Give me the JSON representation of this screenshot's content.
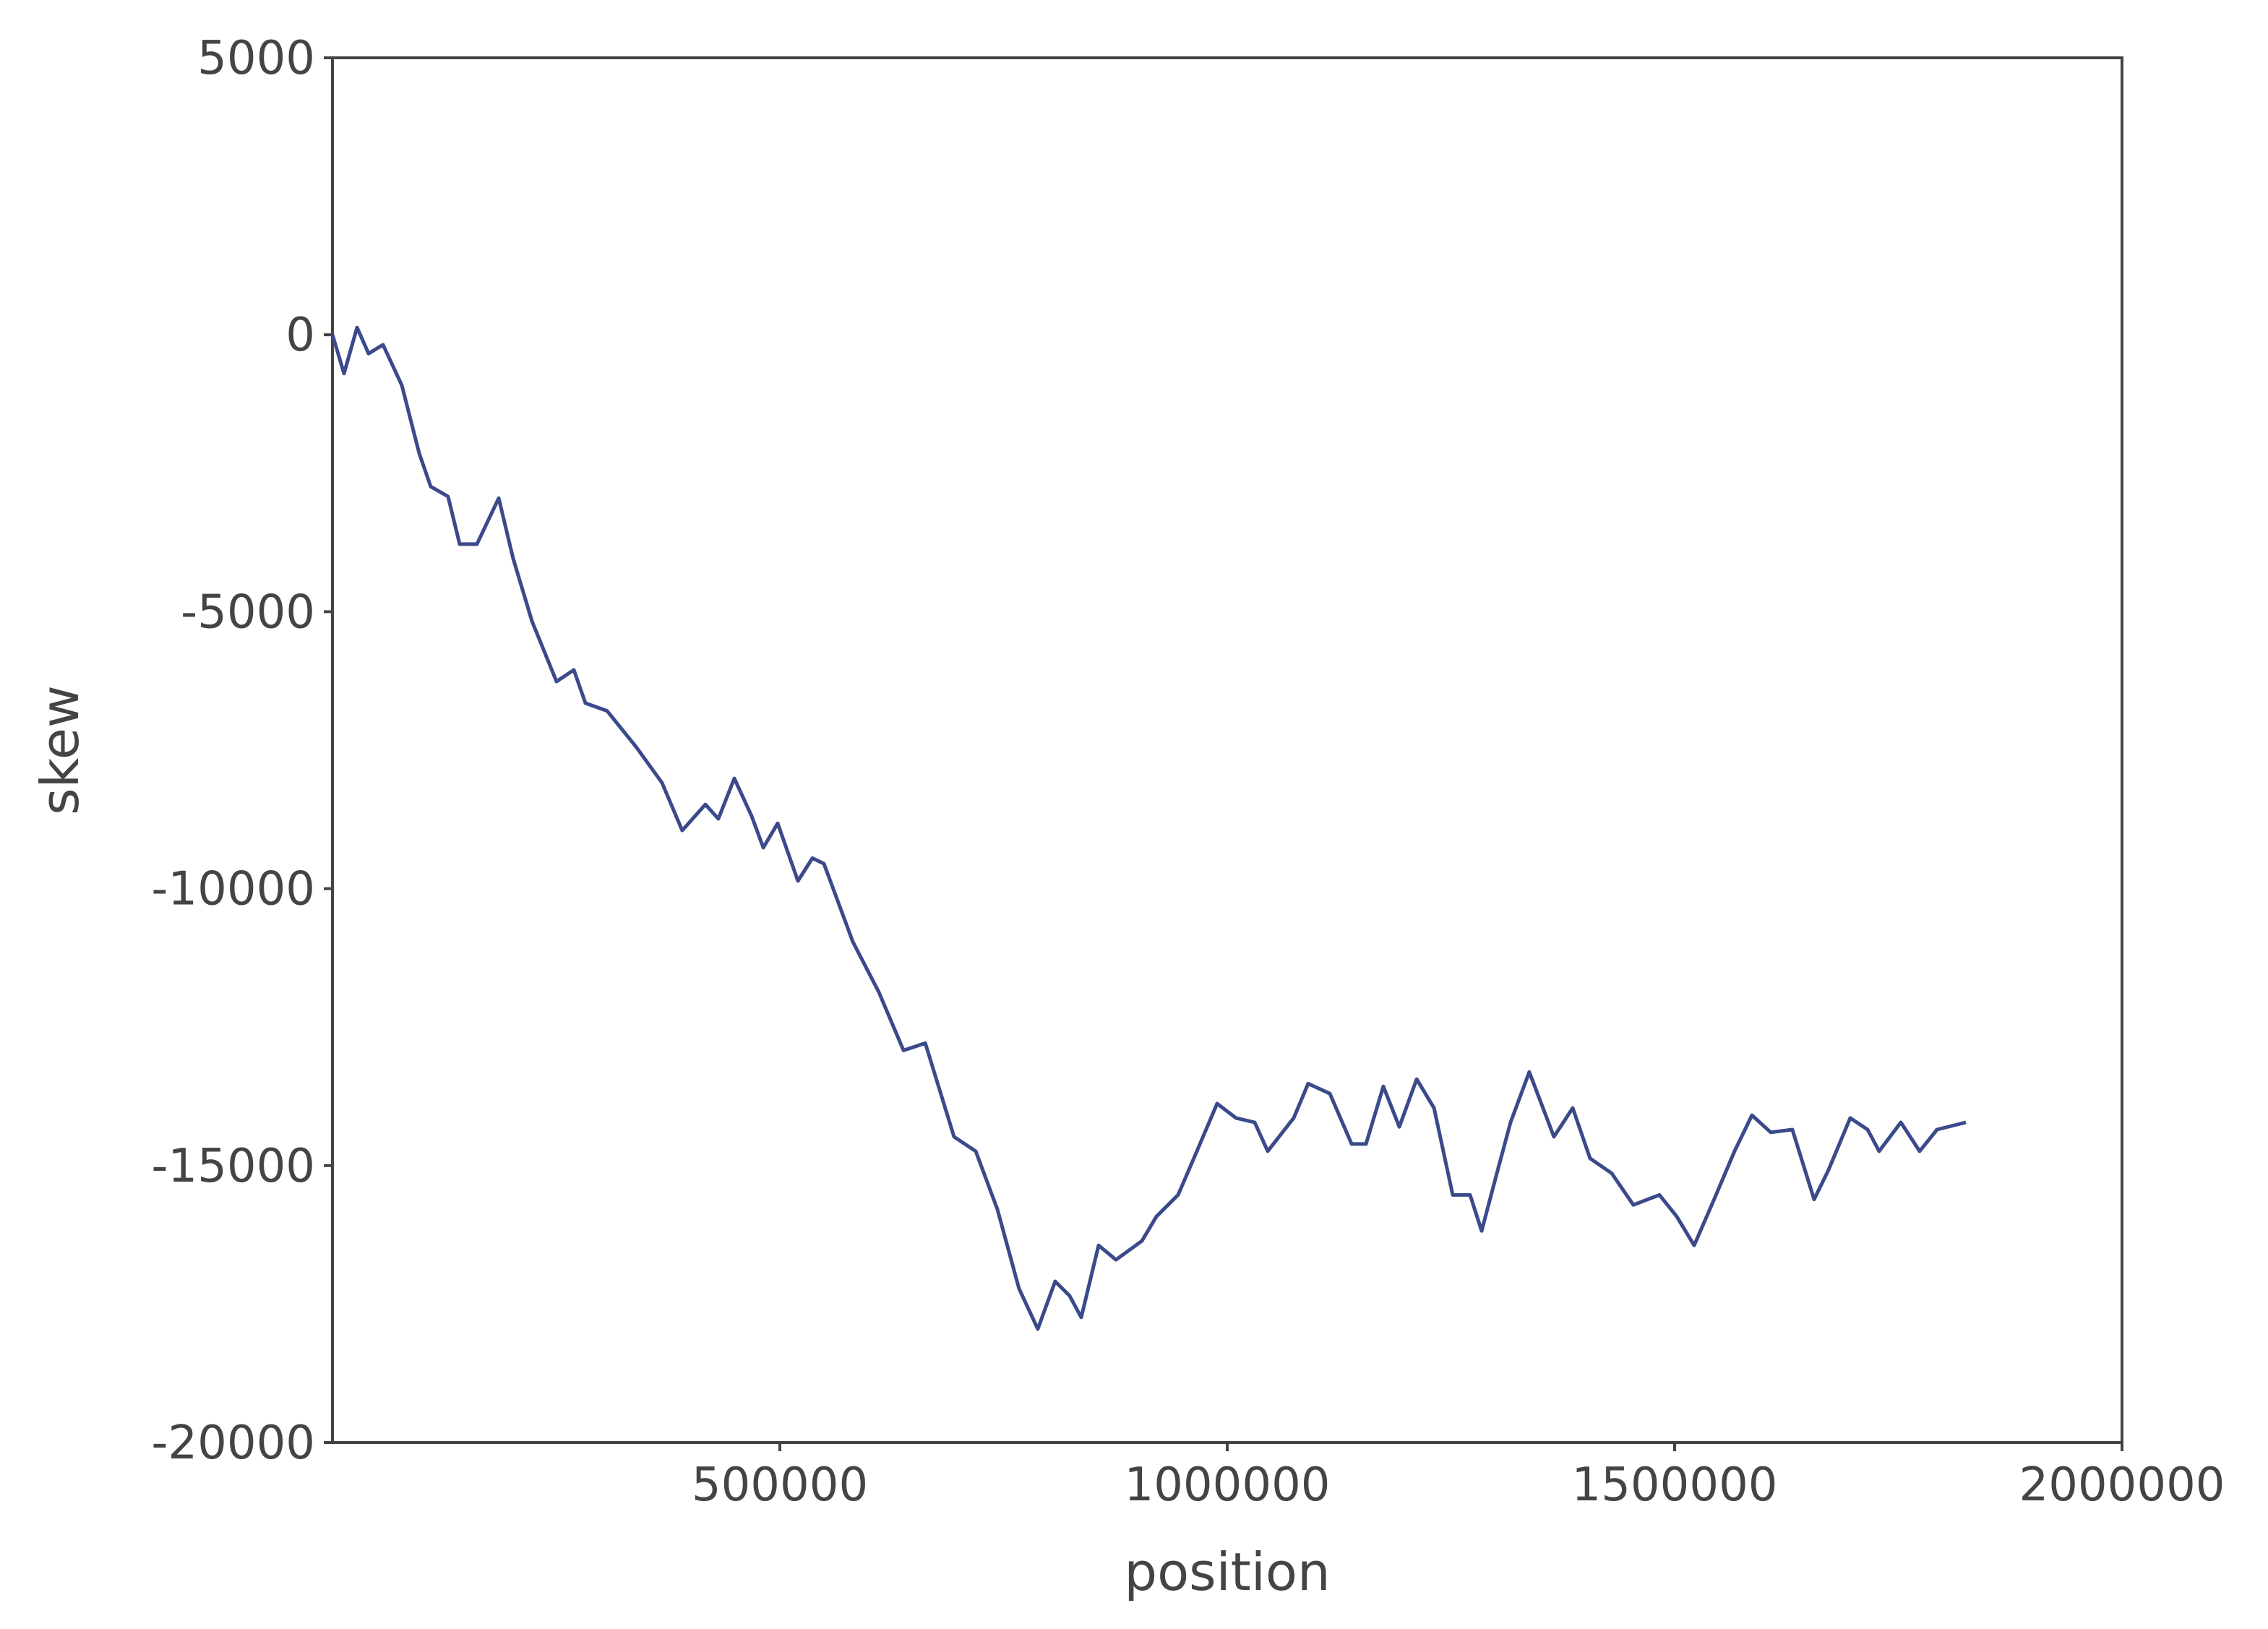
{
  "chart_data": {
    "type": "line",
    "x_label": "position",
    "y_label": "skew",
    "xlim": [
      0,
      2000000
    ],
    "xticks": [
      500000,
      1000000,
      1500000,
      2000000
    ],
    "ylim": [
      -20000,
      5000
    ],
    "yticks": [
      -20000,
      -15000,
      -10000,
      -5000,
      0,
      5000
    ],
    "grid": false,
    "x": [
      0,
      12900,
      27500,
      40400,
      56500,
      77500,
      96900,
      109800,
      129200,
      142200,
      161500,
      185800,
      201900,
      222900,
      250400,
      269800,
      282700,
      306900,
      339300,
      368300,
      390900,
      416800,
      431300,
      449100,
      468500,
      481500,
      497600,
      520200,
      536400,
      549300,
      581600,
      610700,
      638200,
      662500,
      694700,
      718900,
      743100,
      767300,
      788300,
      807700,
      823800,
      836800,
      856200,
      875600,
      904700,
      920800,
      945100,
      966100,
      988700,
      1009700,
      1030700,
      1045200,
      1074300,
      1090500,
      1114700,
      1139000,
      1155100,
      1174500,
      1192300,
      1211700,
      1231100,
      1252000,
      1271400,
      1284300,
      1300500,
      1316600,
      1337600,
      1365100,
      1386100,
      1405500,
      1429700,
      1453900,
      1483000,
      1502400,
      1521800,
      1542800,
      1567000,
      1586400,
      1607400,
      1631600,
      1655900,
      1672000,
      1696300,
      1715700,
      1728600,
      1752800,
      1773800,
      1793200,
      1825500
    ],
    "series": [
      {
        "color": "#3a4a8a",
        "values": [
          0,
          -700,
          130,
          -340,
          -180,
          -910,
          -2140,
          -2740,
          -2920,
          -3780,
          -3780,
          -2950,
          -4040,
          -5170,
          -6260,
          -6050,
          -6650,
          -6790,
          -7440,
          -8090,
          -8950,
          -8480,
          -8740,
          -8010,
          -8690,
          -9260,
          -8820,
          -9860,
          -9450,
          -9550,
          -10960,
          -11870,
          -12920,
          -12790,
          -14480,
          -14740,
          -15790,
          -17220,
          -17950,
          -17090,
          -17350,
          -17740,
          -16440,
          -16700,
          -16360,
          -15920,
          -15530,
          -14740,
          -13880,
          -14140,
          -14220,
          -14740,
          -14140,
          -13520,
          -13700,
          -14610,
          -14610,
          -13570,
          -14300,
          -13440,
          -13960,
          -15530,
          -15530,
          -16180,
          -15190,
          -14220,
          -13310,
          -14480,
          -13960,
          -14870,
          -15140,
          -15710,
          -15530,
          -15920,
          -16440,
          -15660,
          -14740,
          -14090,
          -14400,
          -14350,
          -15610,
          -15080,
          -14140,
          -14350,
          -14740,
          -14220,
          -14740,
          -14350,
          -14220
        ]
      }
    ]
  }
}
